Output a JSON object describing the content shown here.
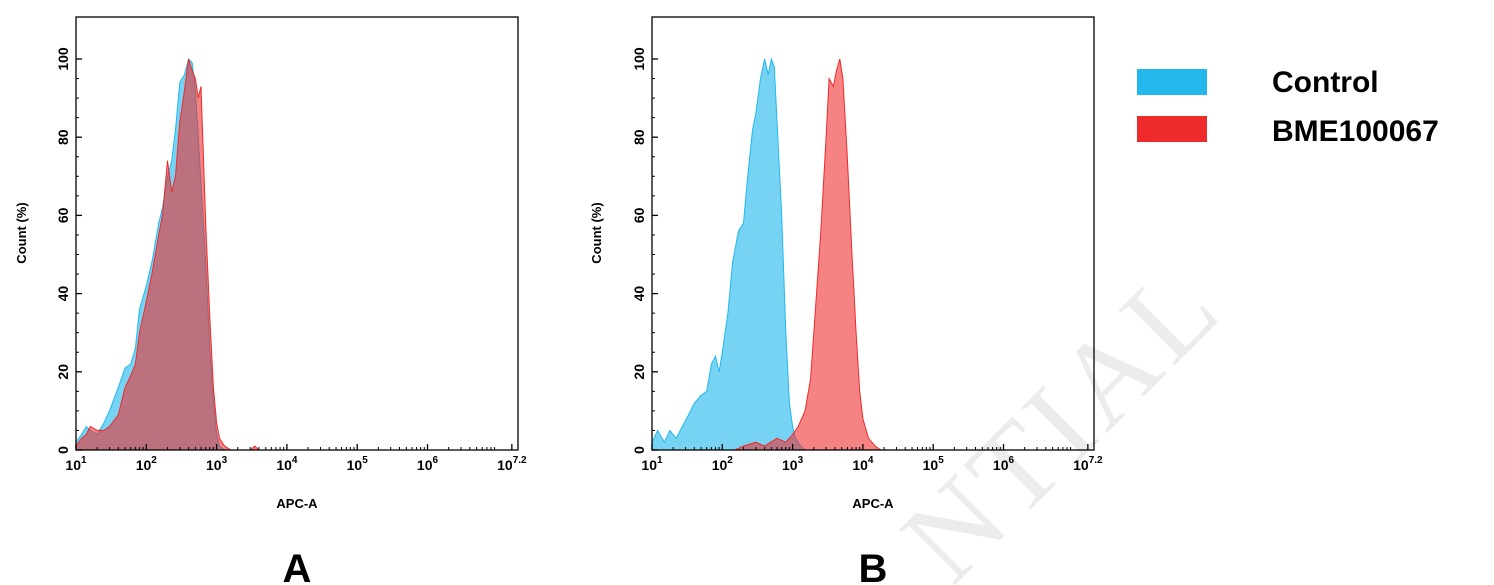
{
  "colors": {
    "control": "#22b8ec",
    "sample": "#ee2a2a",
    "overlap": "#5f6a9a"
  },
  "legend": [
    {
      "label": "Control",
      "color": "#22b8ec"
    },
    {
      "label": "BME100067",
      "color": "#ee2a2a"
    }
  ],
  "watermark": "NTIAL",
  "chart_data": [
    {
      "type": "area",
      "panel_label": "A",
      "xlabel": "APC-A",
      "ylabel": "Count (%)",
      "xscale": "log",
      "xlim": [
        10,
        15848932
      ],
      "ylim": [
        0,
        100
      ],
      "xticks": [
        {
          "base": "10",
          "exp": "1"
        },
        {
          "base": "10",
          "exp": "2"
        },
        {
          "base": "10",
          "exp": "3"
        },
        {
          "base": "10",
          "exp": "4"
        },
        {
          "base": "10",
          "exp": "5"
        },
        {
          "base": "10",
          "exp": "6"
        },
        {
          "base": "10",
          "exp": "7.2"
        }
      ],
      "yticks": [
        "0",
        "20",
        "40",
        "60",
        "80",
        "100"
      ],
      "series": [
        {
          "name": "Control",
          "x": [
            10,
            12,
            14,
            16,
            20,
            25,
            30,
            40,
            50,
            60,
            70,
            80,
            100,
            120,
            150,
            170,
            200,
            230,
            260,
            300,
            350,
            400,
            450,
            500,
            550,
            600,
            700,
            800,
            900,
            1000,
            1100,
            1300
          ],
          "y": [
            2,
            4,
            6,
            5,
            4,
            7,
            10,
            16,
            21,
            22,
            26,
            36,
            42,
            48,
            58,
            62,
            70,
            74,
            82,
            94,
            96,
            100,
            99,
            92,
            80,
            68,
            48,
            26,
            12,
            4,
            1,
            0
          ]
        },
        {
          "name": "BME100067",
          "x": [
            10,
            12,
            14,
            16,
            20,
            25,
            30,
            40,
            50,
            60,
            70,
            80,
            100,
            120,
            150,
            170,
            200,
            230,
            260,
            300,
            350,
            400,
            450,
            500,
            550,
            600,
            700,
            800,
            900,
            1000,
            1100,
            1300,
            1600,
            2000,
            3000,
            3500,
            4000
          ],
          "y": [
            1,
            3,
            4,
            6,
            5,
            5,
            6,
            9,
            16,
            19,
            22,
            30,
            38,
            45,
            55,
            60,
            74,
            66,
            70,
            84,
            92,
            100,
            97,
            95,
            90,
            93,
            58,
            34,
            16,
            7,
            3,
            1,
            0,
            0,
            0,
            1,
            0
          ]
        }
      ]
    },
    {
      "type": "area",
      "panel_label": "B",
      "xlabel": "APC-A",
      "ylabel": "Count (%)",
      "xscale": "log",
      "xlim": [
        10,
        15848932
      ],
      "ylim": [
        0,
        100
      ],
      "xticks": [
        {
          "base": "10",
          "exp": "1"
        },
        {
          "base": "10",
          "exp": "2"
        },
        {
          "base": "10",
          "exp": "3"
        },
        {
          "base": "10",
          "exp": "4"
        },
        {
          "base": "10",
          "exp": "5"
        },
        {
          "base": "10",
          "exp": "6"
        },
        {
          "base": "10",
          "exp": "7.2"
        }
      ],
      "yticks": [
        "0",
        "20",
        "40",
        "60",
        "80",
        "100"
      ],
      "series": [
        {
          "name": "Control",
          "x": [
            10,
            12,
            15,
            18,
            22,
            27,
            33,
            40,
            50,
            60,
            70,
            80,
            90,
            100,
            120,
            140,
            170,
            200,
            230,
            270,
            300,
            350,
            400,
            450,
            500,
            550,
            600,
            700,
            800,
            900,
            1000,
            1100,
            1300,
            1500
          ],
          "y": [
            2,
            5,
            2,
            5,
            3,
            6,
            9,
            12,
            14,
            15,
            22,
            24,
            20,
            25,
            35,
            48,
            56,
            58,
            70,
            82,
            86,
            95,
            100,
            96,
            100,
            98,
            84,
            60,
            30,
            12,
            6,
            3,
            1,
            0
          ]
        },
        {
          "name": "BME100067",
          "x": [
            150,
            200,
            300,
            400,
            600,
            800,
            1000,
            1200,
            1500,
            1800,
            2000,
            2500,
            3000,
            3300,
            3800,
            4200,
            4700,
            5200,
            6000,
            7000,
            8000,
            9000,
            10000,
            12000,
            15000,
            18000
          ],
          "y": [
            0,
            1,
            2,
            1,
            3,
            2,
            4,
            6,
            10,
            18,
            30,
            55,
            80,
            95,
            93,
            97,
            100,
            95,
            75,
            50,
            30,
            15,
            8,
            3,
            1,
            0
          ]
        }
      ]
    }
  ]
}
